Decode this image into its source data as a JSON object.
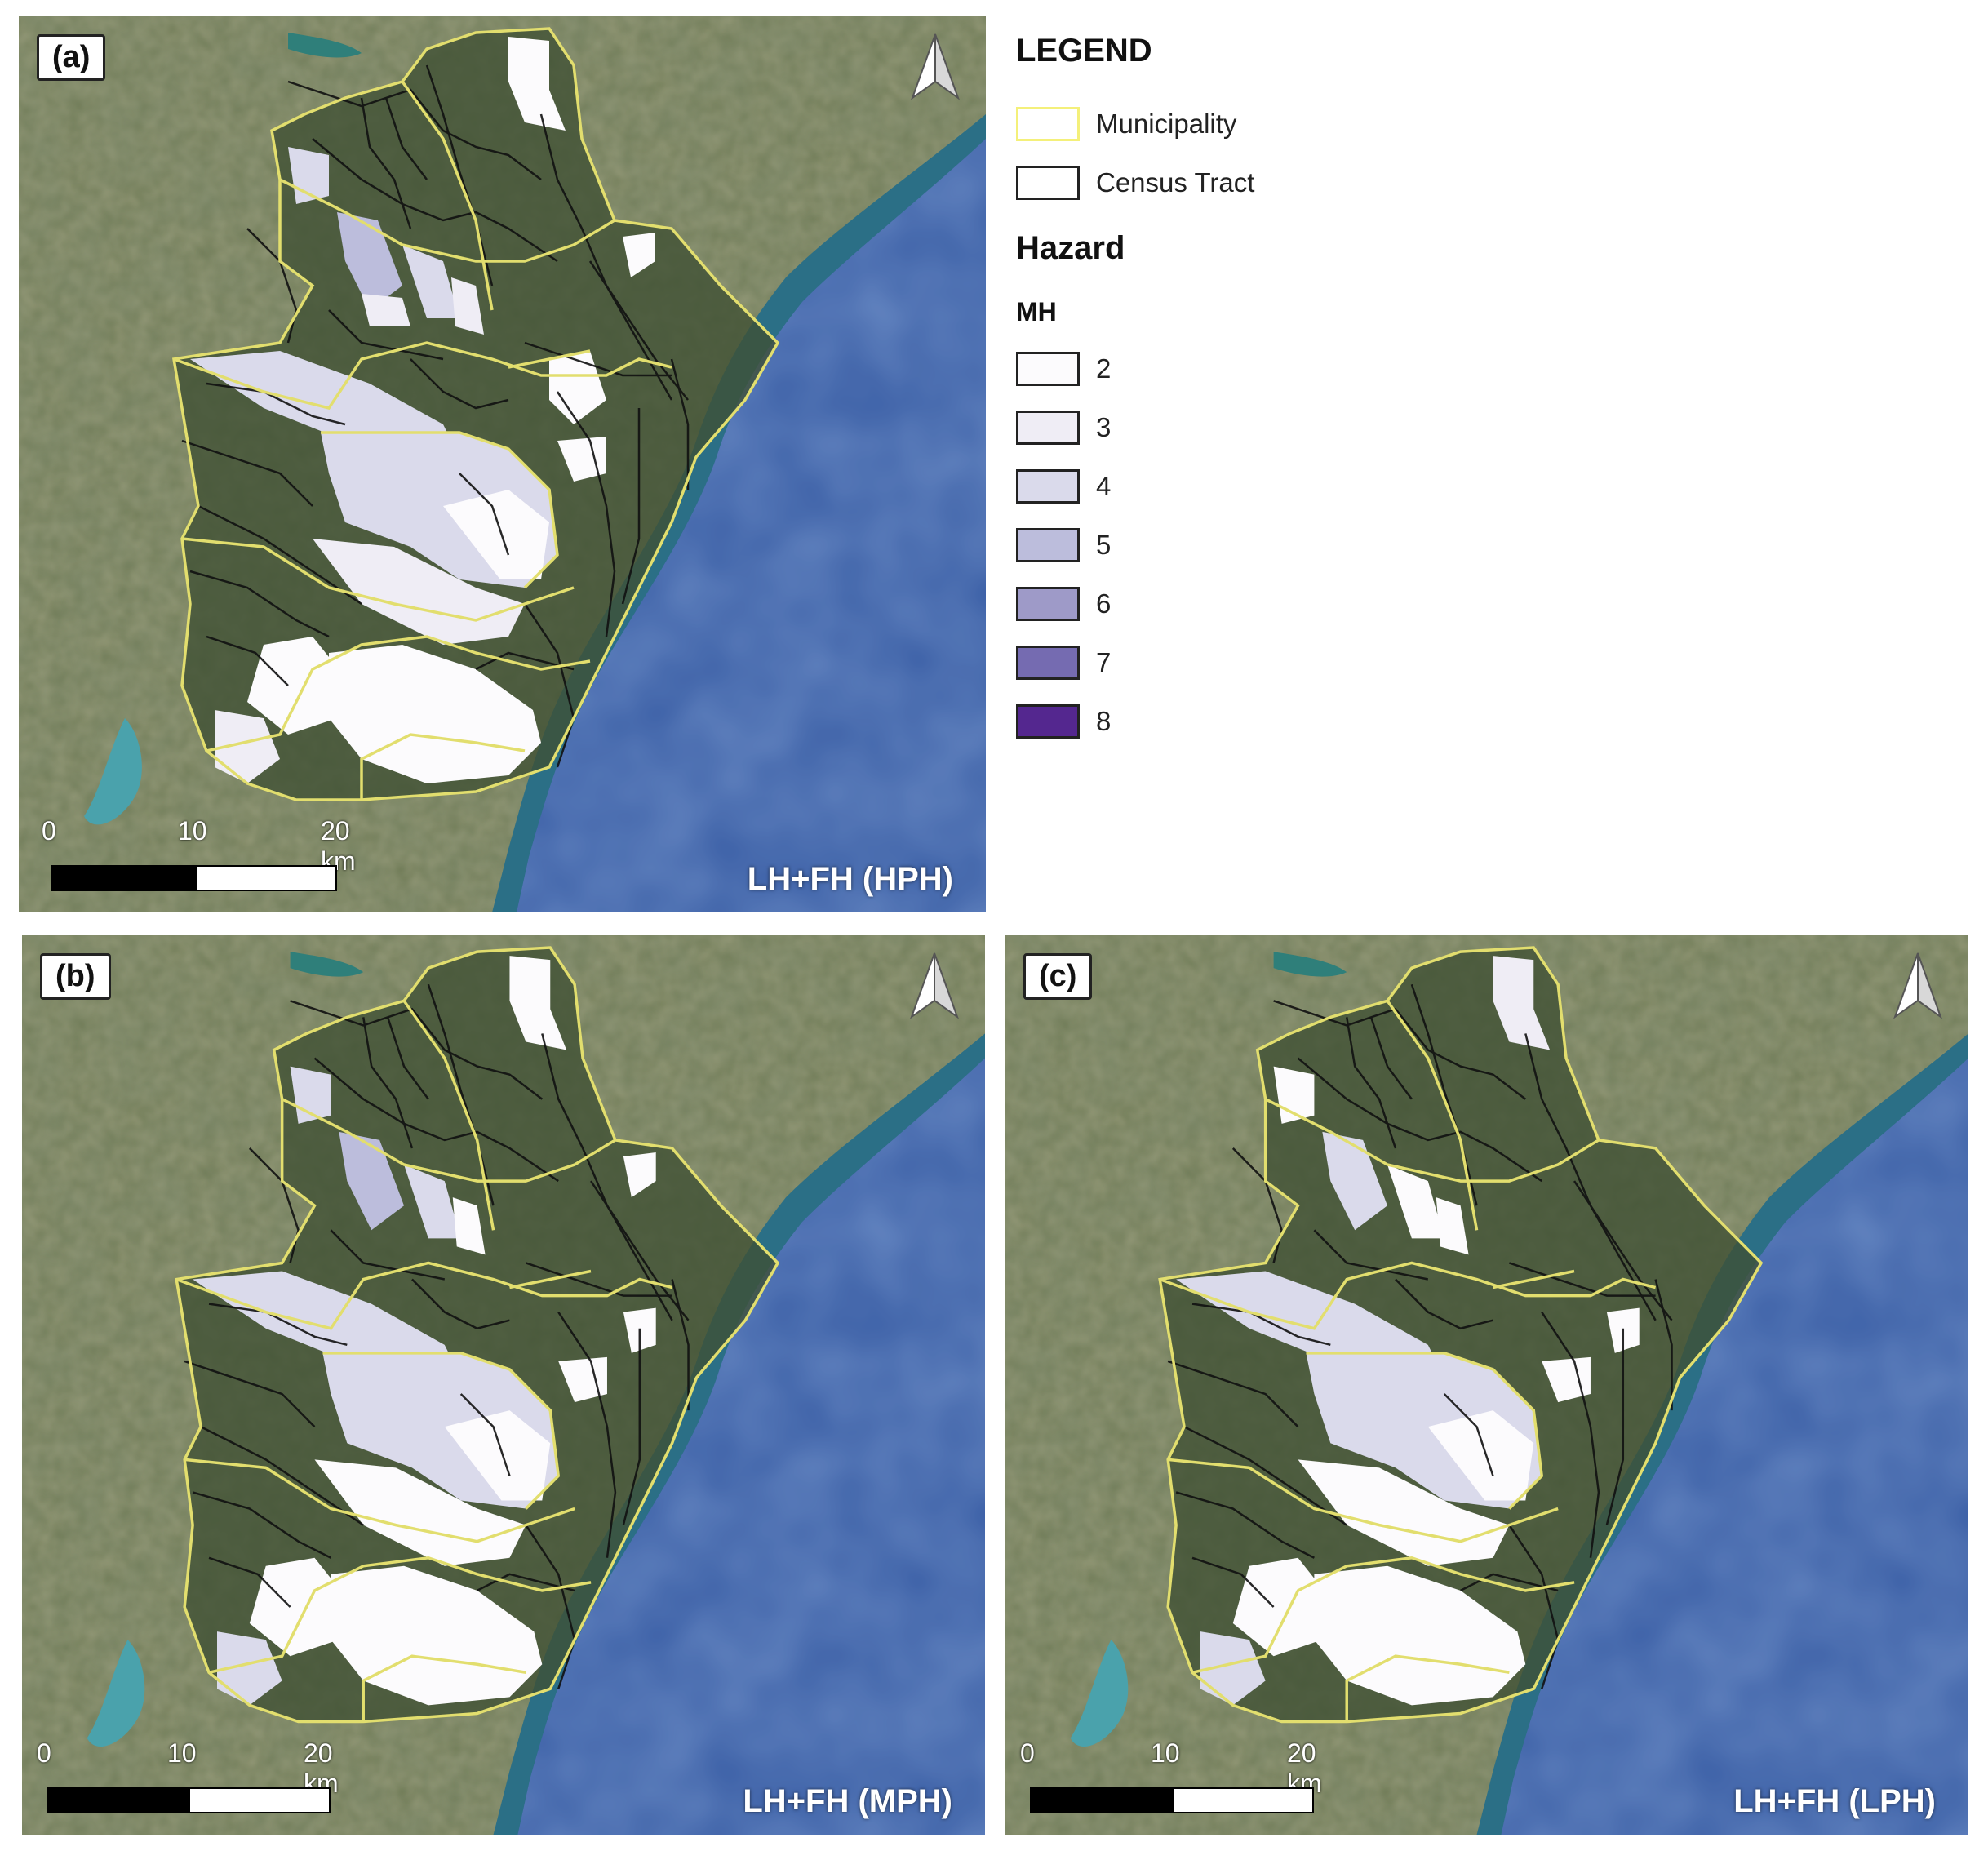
{
  "panels": [
    {
      "id": "a",
      "label": "(a)",
      "scenario": "LH+FH (HPH)"
    },
    {
      "id": "b",
      "label": "(b)",
      "scenario": "LH+FH (MPH)"
    },
    {
      "id": "c",
      "label": "(c)",
      "scenario": "LH+FH (LPH)"
    }
  ],
  "scale": {
    "ticks": [
      "0",
      "10",
      "20 km"
    ]
  },
  "legend": {
    "title": "LEGEND",
    "boundaries": [
      {
        "label": "Municipality",
        "color": "#f4f07a"
      },
      {
        "label": "Census Tract",
        "color": "#222222"
      }
    ],
    "hazard_title": "Hazard",
    "hazard_subtitle": "MH",
    "classes": [
      {
        "label": "2",
        "color": "#fcfbfd"
      },
      {
        "label": "3",
        "color": "#efedf5"
      },
      {
        "label": "4",
        "color": "#dadaeb"
      },
      {
        "label": "5",
        "color": "#bcbddc"
      },
      {
        "label": "6",
        "color": "#9e9ac8"
      },
      {
        "label": "7",
        "color": "#756bb1"
      },
      {
        "label": "8",
        "color": "#54278f"
      }
    ]
  },
  "colors": {
    "land": "#4d5e3a",
    "sea": "#3a5ea5",
    "coast_water": "#2b6f86",
    "lake": "#4aa2ac"
  },
  "icons": [
    "north-arrow-icon"
  ]
}
